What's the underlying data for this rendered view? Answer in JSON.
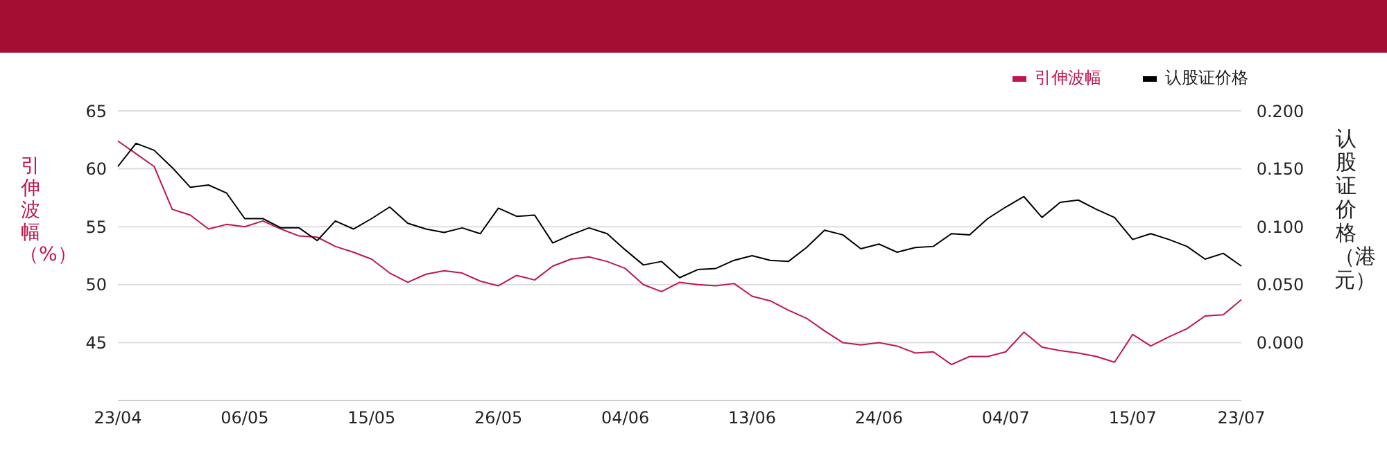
{
  "chart_data": {
    "type": "line",
    "ylabel": "引伸波幅（%）",
    "y2label": "认股证价格（港元）",
    "categories": [
      "23/04",
      null,
      null,
      null,
      null,
      null,
      null,
      "06/05",
      null,
      null,
      null,
      null,
      null,
      null,
      "15/05",
      null,
      null,
      null,
      null,
      null,
      null,
      "26/05",
      null,
      null,
      null,
      null,
      null,
      null,
      "04/06",
      null,
      null,
      null,
      null,
      null,
      null,
      "13/06",
      null,
      null,
      null,
      null,
      null,
      null,
      "24/06",
      null,
      null,
      null,
      null,
      null,
      null,
      "04/07",
      null,
      null,
      null,
      null,
      null,
      null,
      "15/07",
      null,
      null,
      null,
      null,
      null,
      "23/07"
    ],
    "series": [
      {
        "name": "引伸波幅",
        "color": "#c0164a",
        "values": [
          62.4,
          61.3,
          60.2,
          56.5,
          56.0,
          54.8,
          55.2,
          55.0,
          55.5,
          54.8,
          54.2,
          54.1,
          53.3,
          52.8,
          52.2,
          51.0,
          50.2,
          50.9,
          51.2,
          51.0,
          50.3,
          49.9,
          50.8,
          50.4,
          51.6,
          52.2,
          52.4,
          52.0,
          51.4,
          50.0,
          49.4,
          50.2,
          50.0,
          49.9,
          50.1,
          49.0,
          48.6,
          47.8,
          47.1,
          46.0,
          45.0,
          44.8,
          45.0,
          44.7,
          44.1,
          44.2,
          43.1,
          43.8,
          43.8,
          44.2,
          45.9,
          44.6,
          44.3,
          44.1,
          43.8,
          43.3,
          45.7,
          44.7,
          45.5,
          46.2,
          47.3,
          47.4,
          48.7
        ]
      },
      {
        "name": "认股证价格",
        "color": "#000000",
        "axis": "y2",
        "values": [
          0.152,
          0.172,
          0.166,
          0.151,
          0.134,
          0.136,
          0.129,
          0.107,
          0.107,
          0.099,
          0.099,
          0.088,
          0.105,
          0.098,
          0.107,
          0.117,
          0.103,
          0.098,
          0.095,
          0.099,
          0.094,
          0.116,
          0.109,
          0.11,
          0.086,
          0.093,
          0.099,
          0.094,
          0.08,
          0.067,
          0.07,
          0.056,
          0.063,
          0.064,
          0.071,
          0.075,
          0.071,
          0.07,
          0.082,
          0.097,
          0.093,
          0.081,
          0.085,
          0.078,
          0.082,
          0.083,
          0.094,
          0.093,
          0.107,
          0.117,
          0.126,
          0.108,
          0.121,
          0.123,
          0.115,
          0.108,
          0.089,
          0.094,
          0.089,
          0.083,
          0.072,
          0.077,
          0.066
        ]
      }
    ],
    "ylim": [
      40,
      65
    ],
    "yticks": [
      45,
      50,
      55,
      60,
      65
    ],
    "y2lim": [
      -0.05,
      0.2
    ],
    "y2ticks": [
      {
        "value": 0,
        "label": "0.000"
      },
      {
        "value": 0.05,
        "label": "0.050"
      },
      {
        "value": 0.1,
        "label": "0.100"
      },
      {
        "value": 0.15,
        "label": "0.150"
      },
      {
        "value": 0.2,
        "label": "0.200"
      }
    ],
    "grid": "y",
    "legend": "top right"
  }
}
